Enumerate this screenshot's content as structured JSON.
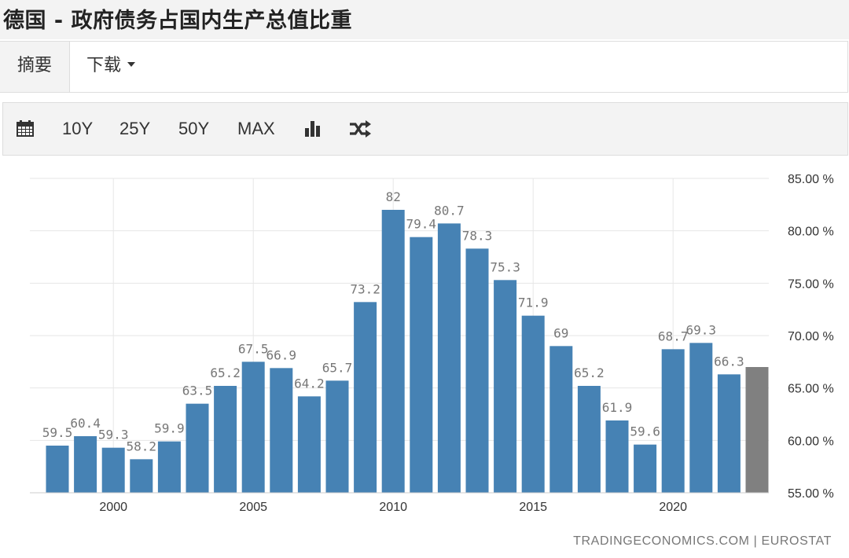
{
  "page": {
    "title": "德国 - 政府债务占国内生产总值比重"
  },
  "tabs": [
    {
      "label": "摘要",
      "active": true
    },
    {
      "label": "下载",
      "dropdown": true
    }
  ],
  "toolbar": {
    "calendar_icon": "calendar-icon",
    "ranges": [
      "10Y",
      "25Y",
      "50Y",
      "MAX"
    ],
    "chart_type_icon": "bar-chart-icon",
    "compare_icon": "shuffle-icon"
  },
  "chart_data": {
    "type": "bar",
    "x": [
      1998,
      1999,
      2000,
      2001,
      2002,
      2003,
      2004,
      2005,
      2006,
      2007,
      2008,
      2009,
      2010,
      2011,
      2012,
      2013,
      2014,
      2015,
      2016,
      2017,
      2018,
      2019,
      2020,
      2021,
      2022,
      2023
    ],
    "values": [
      59.5,
      60.4,
      59.3,
      58.2,
      59.9,
      63.5,
      65.2,
      67.5,
      66.9,
      64.2,
      65.7,
      73.2,
      82,
      79.4,
      80.7,
      78.3,
      75.3,
      71.9,
      69,
      65.2,
      61.9,
      59.6,
      68.7,
      69.3,
      66.3,
      67.0
    ],
    "data_labels": [
      "59.5",
      "60.4",
      "59.3",
      "58.2",
      "59.9",
      "63.5",
      "65.2",
      "67.5",
      "66.9",
      "64.2",
      "65.7",
      "73.2",
      "82",
      "79.4",
      "80.7",
      "78.3",
      "75.3",
      "71.9",
      "69",
      "65.2",
      "61.9",
      "59.6",
      "68.7",
      "69.3",
      "66.3",
      ""
    ],
    "forecast_last": true,
    "colors": {
      "bar": "#4682b4",
      "forecast": "#808080",
      "label": "#777777",
      "grid": "#e6e6e6"
    },
    "xticks": [
      2000,
      2005,
      2010,
      2015,
      2020
    ],
    "ylim": [
      55,
      85
    ],
    "yticks": [
      55,
      60,
      65,
      70,
      75,
      80,
      85
    ],
    "ytick_labels": [
      "55.00 %",
      "60.00 %",
      "65.00 %",
      "70.00 %",
      "75.00 %",
      "80.00 %",
      "85.00 %"
    ],
    "grid": true,
    "title": "",
    "xlabel": "",
    "ylabel": ""
  },
  "footer": {
    "source": "TRADINGECONOMICS.COM | EUROSTAT"
  }
}
